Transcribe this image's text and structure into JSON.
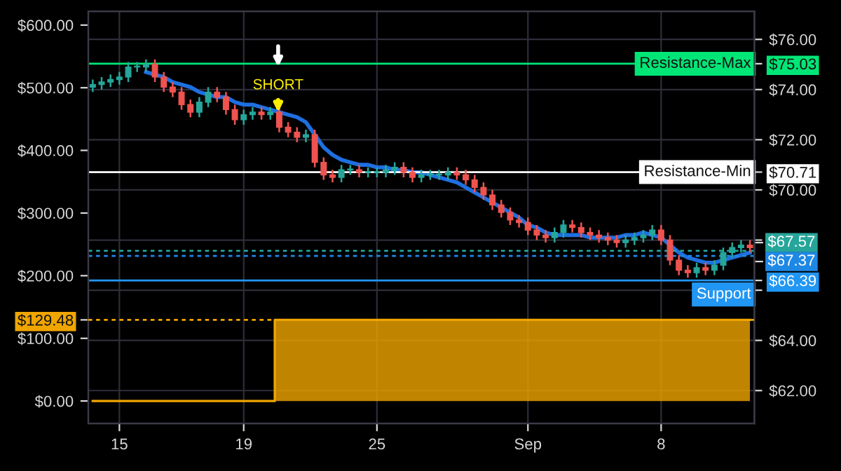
{
  "chart_data": {
    "type": "candlestick",
    "categories": [
      null,
      null,
      null,
      "15",
      null,
      null,
      null,
      null,
      null,
      null,
      null,
      null,
      null,
      null,
      null,
      null,
      null,
      "19",
      null,
      null,
      null,
      null,
      null,
      null,
      null,
      null,
      null,
      null,
      null,
      null,
      null,
      null,
      "25",
      null,
      null,
      null,
      null,
      null,
      null,
      null,
      null,
      null,
      null,
      null,
      null,
      null,
      null,
      null,
      null,
      "Sep",
      null,
      null,
      null,
      null,
      null,
      null,
      null,
      null,
      null,
      null,
      null,
      null,
      null,
      null,
      "8",
      null,
      null,
      null,
      null,
      null,
      null,
      null,
      null,
      null,
      null
    ],
    "ylim": [
      -35.8,
      622
    ],
    "yticks": [
      {
        "value": 0,
        "label": "$0.00"
      },
      {
        "value": 100,
        "label": "$100.00"
      },
      {
        "value": 129.48,
        "label": "$129.48"
      },
      {
        "value": 200,
        "label": "$200.00"
      },
      {
        "value": 300,
        "label": "$300.00"
      },
      {
        "value": 400,
        "label": "$400.00"
      },
      {
        "value": 500,
        "label": "$500.00"
      },
      {
        "value": 600,
        "label": "$600.00"
      }
    ],
    "y2lim": [
      60.69,
      77.12
    ],
    "y2ticks": [
      {
        "value": 62,
        "label": "$62.00"
      },
      {
        "value": 64,
        "label": "$64.00"
      },
      {
        "value": 66,
        "label": null
      },
      {
        "value": 66.39,
        "label": "$66.39"
      },
      {
        "value": 68,
        "label": null
      },
      {
        "value": 70,
        "label": "$70.00"
      },
      {
        "value": 70.71,
        "label": "$70.71"
      },
      {
        "value": 72,
        "label": "$72.00"
      },
      {
        "value": 74,
        "label": "$74.00"
      },
      {
        "value": 75.03,
        "label": "$75.03"
      },
      {
        "value": 76,
        "label": "$76.00"
      }
    ],
    "grid": true,
    "series": [
      {
        "type": "area",
        "color": "#f0a500",
        "values": [
          0,
          0,
          0,
          0,
          0,
          0,
          0,
          0,
          0,
          0,
          0,
          0,
          0,
          0,
          0,
          0,
          0,
          0,
          0,
          0,
          0,
          129.5,
          129.5,
          129.5,
          129.5,
          129.5,
          129.5,
          129.5,
          129.5,
          129.5,
          129.5,
          129.5,
          129.5,
          129.5,
          129.5,
          129.5,
          129.5,
          129.5,
          129.5,
          129.5,
          129.5,
          129.5,
          129.5,
          129.5,
          129.5,
          129.5,
          129.5,
          129.5,
          129.5,
          129.5,
          129.5,
          129.5,
          129.5,
          129.5,
          129.5,
          129.5,
          129.5,
          129.5,
          129.5,
          129.5,
          129.5,
          129.5,
          129.5,
          129.5,
          129.5,
          129.5,
          129.5,
          129.5,
          129.5,
          129.5,
          129.5,
          129.5,
          129.5,
          129.5,
          129.5
        ]
      },
      {
        "type": "line",
        "axis": "y2",
        "color": "#1e6fe0",
        "values": [
          null,
          null,
          null,
          null,
          null,
          null,
          74.7,
          74.6,
          74.5,
          74.3,
          74.2,
          74.1,
          73.9,
          73.8,
          73.7,
          73.7,
          73.5,
          73.4,
          73.4,
          73.3,
          73.2,
          73.1,
          73.0,
          72.9,
          72.7,
          72.2,
          71.7,
          71.4,
          71.2,
          71.1,
          71.0,
          71.0,
          70.9,
          70.9,
          70.8,
          70.8,
          70.7,
          70.7,
          70.6,
          70.5,
          70.4,
          70.3,
          70.1,
          69.9,
          69.7,
          69.5,
          69.3,
          69.1,
          68.9,
          68.6,
          68.5,
          68.3,
          68.2,
          68.2,
          68.2,
          68.2,
          68.1,
          68.1,
          68.1,
          68.1,
          68.2,
          68.2,
          68.3,
          68.2,
          68.1,
          67.8,
          67.5,
          67.3,
          67.2,
          67.1,
          67.1,
          67.2,
          67.3,
          67.4,
          67.5
        ]
      },
      {
        "axis": "y2",
        "ohlc": [
          [
            74.1,
            74.4,
            73.9,
            74.2
          ],
          [
            74.2,
            74.5,
            74.0,
            74.3
          ],
          [
            74.3,
            74.6,
            74.1,
            74.4
          ],
          [
            74.4,
            74.7,
            74.2,
            74.5
          ],
          [
            74.5,
            75.1,
            74.3,
            74.9
          ],
          [
            74.9,
            75.1,
            74.7,
            74.9
          ],
          [
            74.9,
            75.2,
            74.7,
            75.0
          ],
          [
            75.0,
            75.2,
            74.3,
            74.5
          ],
          [
            74.5,
            74.7,
            73.9,
            74.1
          ],
          [
            74.1,
            74.3,
            73.7,
            73.9
          ],
          [
            73.9,
            74.1,
            73.2,
            73.4
          ],
          [
            73.4,
            73.6,
            72.9,
            73.1
          ],
          [
            73.1,
            73.7,
            72.9,
            73.5
          ],
          [
            73.5,
            74.1,
            73.3,
            73.9
          ],
          [
            73.9,
            74.1,
            73.5,
            73.7
          ],
          [
            73.7,
            73.9,
            73.0,
            73.2
          ],
          [
            73.2,
            73.4,
            72.6,
            72.8
          ],
          [
            72.8,
            73.2,
            72.6,
            73.0
          ],
          [
            73.0,
            73.3,
            72.8,
            73.1
          ],
          [
            73.1,
            73.3,
            72.8,
            73.0
          ],
          [
            73.0,
            73.3,
            72.8,
            73.1
          ],
          [
            73.1,
            73.3,
            72.3,
            72.5
          ],
          [
            72.5,
            72.7,
            72.1,
            72.3
          ],
          [
            72.3,
            72.5,
            71.9,
            72.1
          ],
          [
            72.1,
            72.4,
            71.9,
            72.2
          ],
          [
            72.2,
            72.4,
            70.9,
            71.1
          ],
          [
            71.1,
            71.3,
            70.4,
            70.6
          ],
          [
            70.6,
            70.8,
            70.3,
            70.5
          ],
          [
            70.5,
            71.0,
            70.3,
            70.8
          ],
          [
            70.8,
            71.0,
            70.6,
            70.8
          ],
          [
            70.8,
            71.0,
            70.5,
            70.7
          ],
          [
            70.7,
            70.9,
            70.5,
            70.7
          ],
          [
            70.7,
            70.9,
            70.5,
            70.7
          ],
          [
            70.7,
            71.0,
            70.5,
            70.8
          ],
          [
            70.8,
            71.1,
            70.6,
            70.9
          ],
          [
            70.9,
            71.1,
            70.5,
            70.7
          ],
          [
            70.7,
            70.9,
            70.3,
            70.5
          ],
          [
            70.5,
            70.8,
            70.3,
            70.6
          ],
          [
            70.6,
            70.8,
            70.4,
            70.6
          ],
          [
            70.6,
            70.8,
            70.4,
            70.6
          ],
          [
            70.6,
            70.9,
            70.4,
            70.7
          ],
          [
            70.7,
            70.9,
            70.4,
            70.6
          ],
          [
            70.6,
            70.8,
            70.2,
            70.4
          ],
          [
            70.4,
            70.6,
            69.9,
            70.1
          ],
          [
            70.1,
            70.3,
            69.6,
            69.8
          ],
          [
            69.8,
            70.0,
            69.2,
            69.4
          ],
          [
            69.4,
            69.6,
            68.9,
            69.1
          ],
          [
            69.1,
            69.3,
            68.6,
            68.8
          ],
          [
            68.8,
            69.0,
            68.5,
            68.7
          ],
          [
            68.7,
            68.9,
            68.2,
            68.4
          ],
          [
            68.4,
            68.6,
            68.0,
            68.2
          ],
          [
            68.2,
            68.4,
            67.9,
            68.1
          ],
          [
            68.1,
            68.5,
            67.9,
            68.3
          ],
          [
            68.3,
            68.8,
            68.1,
            68.6
          ],
          [
            68.6,
            68.8,
            68.3,
            68.5
          ],
          [
            68.5,
            68.7,
            68.1,
            68.3
          ],
          [
            68.3,
            68.5,
            68.0,
            68.2
          ],
          [
            68.2,
            68.4,
            67.9,
            68.1
          ],
          [
            68.1,
            68.3,
            67.8,
            68.0
          ],
          [
            68.0,
            68.2,
            67.7,
            67.9
          ],
          [
            67.9,
            68.2,
            67.7,
            68.0
          ],
          [
            68.0,
            68.3,
            67.8,
            68.1
          ],
          [
            68.1,
            68.4,
            67.9,
            68.2
          ],
          [
            68.2,
            68.6,
            68.0,
            68.4
          ],
          [
            68.4,
            68.6,
            67.8,
            68.0
          ],
          [
            68.0,
            68.2,
            67.0,
            67.2
          ],
          [
            67.2,
            67.4,
            66.6,
            66.8
          ],
          [
            66.8,
            67.0,
            66.5,
            66.7
          ],
          [
            66.7,
            67.1,
            66.5,
            66.9
          ],
          [
            66.9,
            67.1,
            66.6,
            66.8
          ],
          [
            66.8,
            67.2,
            66.6,
            67.0
          ],
          [
            67.0,
            67.7,
            66.8,
            67.5
          ],
          [
            67.5,
            67.9,
            67.3,
            67.7
          ],
          [
            67.7,
            68.0,
            67.5,
            67.8
          ],
          [
            67.8,
            68.0,
            67.5,
            67.7
          ]
        ],
        "colors": [
          "#26a69a",
          "#26a69a",
          "#26a69a",
          "#26a69a",
          "#26a69a",
          "#26a69a",
          "#26a69a",
          "#ef5350",
          "#ef5350",
          "#ef5350",
          "#ef5350",
          "#ef5350",
          "#26a69a",
          "#26a69a",
          "#ef5350",
          "#ef5350",
          "#ef5350",
          "#26a69a",
          "#26a69a",
          "#ef5350",
          "#26a69a",
          "#ef5350",
          "#ef5350",
          "#ef5350",
          "#26a69a",
          "#ef5350",
          "#ef5350",
          "#ef5350",
          "#26a69a",
          "#26a69a",
          "#ef5350",
          "#26a69a",
          "#26a69a",
          "#26a69a",
          "#26a69a",
          "#ef5350",
          "#ef5350",
          "#26a69a",
          "#26a69a",
          "#26a69a",
          "#26a69a",
          "#ef5350",
          "#ef5350",
          "#ef5350",
          "#ef5350",
          "#ef5350",
          "#ef5350",
          "#ef5350",
          "#ef5350",
          "#ef5350",
          "#ef5350",
          "#ef5350",
          "#26a69a",
          "#26a69a",
          "#ef5350",
          "#ef5350",
          "#ef5350",
          "#ef5350",
          "#ef5350",
          "#ef5350",
          "#26a69a",
          "#26a69a",
          "#26a69a",
          "#26a69a",
          "#ef5350",
          "#ef5350",
          "#ef5350",
          "#ef5350",
          "#26a69a",
          "#ef5350",
          "#26a69a",
          "#26a69a",
          "#26a69a",
          "#26a69a",
          "#ef5350"
        ]
      }
    ],
    "ref_lines": [
      {
        "axis": "y2",
        "value": 75.03,
        "label": "Resistance-Max",
        "color": "#00e676",
        "line_style": "solid"
      },
      {
        "axis": "y2",
        "value": 70.71,
        "label": "Resistance-Min",
        "color": "#ffffff",
        "line_style": "solid"
      },
      {
        "axis": "y2",
        "value": 67.57,
        "label": "$67.57",
        "color": "#26a69a",
        "line_style": "dotted"
      },
      {
        "axis": "y2",
        "value": 67.37,
        "label": "$67.37",
        "color": "#1e88e5",
        "line_style": "dotted"
      },
      {
        "axis": "y2",
        "value": 66.39,
        "label": "Support",
        "color": "#2196f3",
        "line_style": "solid"
      },
      {
        "axis": "y",
        "value": 129.48,
        "label": null,
        "color": "#f0a500",
        "line_style": "dotted"
      }
    ],
    "annotations": [
      "SHORT"
    ]
  }
}
